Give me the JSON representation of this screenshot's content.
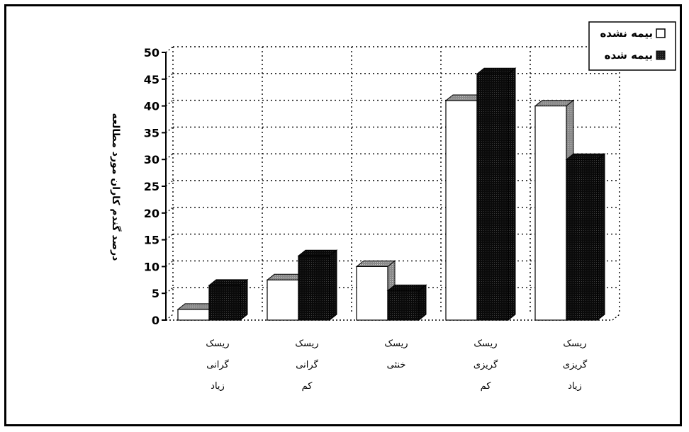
{
  "chart_data": {
    "type": "bar",
    "style": "3d-clustered",
    "categories": [
      [
        "ریسک",
        "گرانی",
        "زیاد"
      ],
      [
        "ریسک",
        "گرانی",
        "کم"
      ],
      [
        "ریسک",
        "خنثی"
      ],
      [
        "ریسک",
        "گریزی",
        "کم"
      ],
      [
        "ریسک",
        "گریزی",
        "زیاد"
      ]
    ],
    "series": [
      {
        "name": "بیمه نشده",
        "values": [
          2,
          7.5,
          10,
          41,
          40
        ],
        "color": "#ffffff"
      },
      {
        "name": "بیمه شده",
        "values": [
          6.5,
          12,
          5.5,
          46,
          30
        ],
        "color": "#1a1a1a"
      }
    ],
    "ylabel": "درصد گندم کاران مورد مطالعه",
    "xlabel": "",
    "ylim": [
      0,
      50
    ],
    "yticks": [
      0,
      5,
      10,
      15,
      20,
      25,
      30,
      35,
      40,
      45,
      50
    ],
    "grid": true,
    "legend_position": "top-right"
  }
}
